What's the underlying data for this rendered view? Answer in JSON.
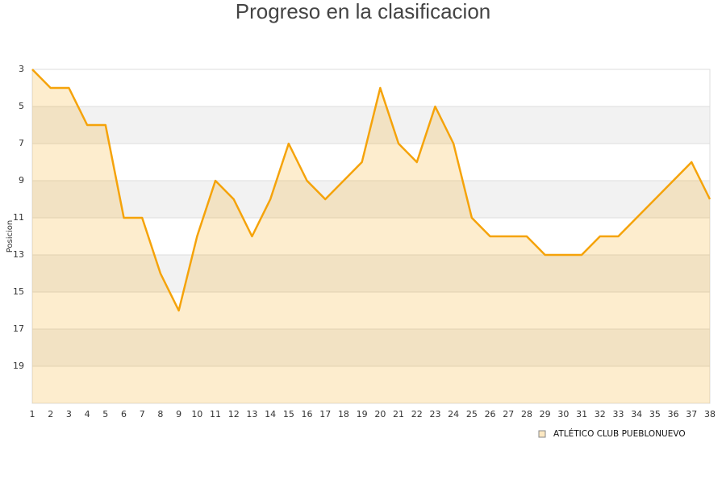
{
  "chart_data": {
    "type": "line",
    "title": "Progreso en la clasificacion",
    "y_label": "Posicion",
    "x": [
      1,
      2,
      3,
      4,
      5,
      6,
      7,
      8,
      9,
      10,
      11,
      12,
      13,
      14,
      15,
      16,
      17,
      18,
      19,
      20,
      21,
      22,
      23,
      24,
      25,
      26,
      27,
      28,
      29,
      30,
      31,
      32,
      33,
      34,
      35,
      36,
      37,
      38
    ],
    "xlim": [
      1,
      38
    ],
    "series": [
      {
        "name": "ATLÉTICO CLUB PUEBLONUEVO",
        "color": "#f5a30a",
        "values": [
          3,
          4,
          4,
          6,
          6,
          11,
          11,
          14,
          16,
          12,
          9,
          10,
          12,
          10,
          7,
          9,
          10,
          9,
          8,
          4,
          7,
          8,
          5,
          7,
          11,
          12,
          12,
          12,
          13,
          13,
          13,
          12,
          12,
          11,
          10,
          9,
          8,
          10
        ]
      }
    ],
    "ylim": [
      21,
      3
    ],
    "yticks": [
      3,
      5,
      7,
      9,
      11,
      13,
      15,
      17,
      19
    ],
    "grid": true
  }
}
